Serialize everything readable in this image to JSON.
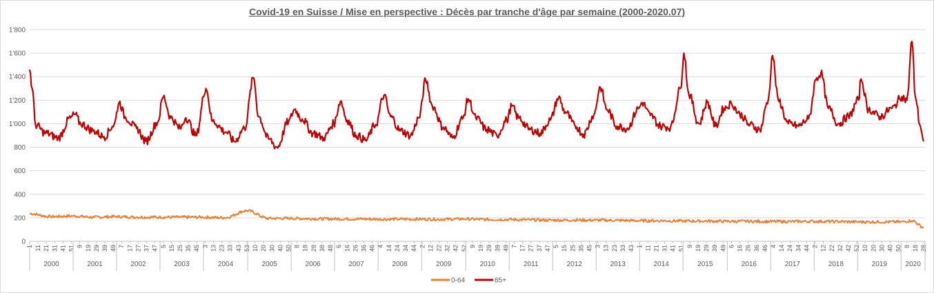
{
  "chart_data": {
    "type": "line",
    "title": "Covid-19 en Suisse / Mise en perspective : Décès par tranche d'âge par semaine (2000-2020.07)",
    "ylim": [
      0,
      1800
    ],
    "yticks": [
      0,
      200,
      400,
      600,
      800,
      "1'000",
      "1'200",
      "1'400",
      "1'600",
      "1'800"
    ],
    "grid": true,
    "legend_position": "bottom",
    "years": [
      {
        "label": "2000",
        "ticks": [
          "1",
          "11",
          "21",
          "31",
          "41",
          "51"
        ]
      },
      {
        "label": "2001",
        "ticks": [
          "9",
          "19",
          "29",
          "39",
          "49"
        ]
      },
      {
        "label": "2002",
        "ticks": [
          "7",
          "17",
          "27",
          "37",
          "47"
        ]
      },
      {
        "label": "2003",
        "ticks": [
          "5",
          "15",
          "25",
          "35",
          "45"
        ]
      },
      {
        "label": "2004",
        "ticks": [
          "3",
          "13",
          "23",
          "33",
          "43",
          "53"
        ]
      },
      {
        "label": "2005",
        "ticks": [
          "10",
          "20",
          "30",
          "40",
          "50"
        ]
      },
      {
        "label": "2006",
        "ticks": [
          "8",
          "18",
          "28",
          "38",
          "48"
        ]
      },
      {
        "label": "2007",
        "ticks": [
          "6",
          "16",
          "26",
          "36",
          "46"
        ]
      },
      {
        "label": "2008",
        "ticks": [
          "4",
          "14",
          "24",
          "34",
          "44"
        ]
      },
      {
        "label": "2009",
        "ticks": [
          "2",
          "12",
          "22",
          "32",
          "42",
          "52"
        ]
      },
      {
        "label": "2010",
        "ticks": [
          "9",
          "19",
          "29",
          "39",
          "49"
        ]
      },
      {
        "label": "2011",
        "ticks": [
          "7",
          "17",
          "27",
          "37",
          "47"
        ]
      },
      {
        "label": "2012",
        "ticks": [
          "5",
          "15",
          "25",
          "35",
          "45"
        ]
      },
      {
        "label": "2013",
        "ticks": [
          "3",
          "13",
          "23",
          "33",
          "43"
        ]
      },
      {
        "label": "2014",
        "ticks": [
          "1",
          "11",
          "21",
          "31",
          "41",
          "51"
        ]
      },
      {
        "label": "2015",
        "ticks": [
          "9",
          "19",
          "29",
          "39",
          "49"
        ]
      },
      {
        "label": "2016",
        "ticks": [
          "6",
          "16",
          "26",
          "36",
          "46"
        ]
      },
      {
        "label": "2017",
        "ticks": [
          "4",
          "14",
          "24",
          "34",
          "44"
        ]
      },
      {
        "label": "2018",
        "ticks": [
          "2",
          "12",
          "22",
          "32",
          "42",
          "52"
        ]
      },
      {
        "label": "2019",
        "ticks": [
          "10",
          "20",
          "30",
          "40",
          "50"
        ]
      },
      {
        "label": "2020",
        "ticks": [
          "8",
          "18",
          "28"
        ]
      }
    ],
    "series": [
      {
        "name": "0-64",
        "color": "#ed7d31",
        "points": [
          [
            "2000-W01",
            235
          ],
          [
            "2000-W26",
            210
          ],
          [
            "2000-W52",
            215
          ],
          [
            "2001-W26",
            205
          ],
          [
            "2001-W52",
            210
          ],
          [
            "2002-W26",
            205
          ],
          [
            "2002-W52",
            205
          ],
          [
            "2003-W26",
            205
          ],
          [
            "2003-W52",
            205
          ],
          [
            "2004-W26",
            200
          ],
          [
            "2004-W53",
            260
          ],
          [
            "2005-W26",
            195
          ],
          [
            "2005-W52",
            195
          ],
          [
            "2006-W26",
            192
          ],
          [
            "2006-W52",
            190
          ],
          [
            "2007-W26",
            190
          ],
          [
            "2007-W52",
            188
          ],
          [
            "2008-W26",
            188
          ],
          [
            "2008-W52",
            188
          ],
          [
            "2009-W26",
            187
          ],
          [
            "2009-W52",
            190
          ],
          [
            "2010-W26",
            185
          ],
          [
            "2010-W52",
            185
          ],
          [
            "2011-W26",
            182
          ],
          [
            "2011-W52",
            180
          ],
          [
            "2012-W26",
            180
          ],
          [
            "2012-W52",
            180
          ],
          [
            "2013-W26",
            178
          ],
          [
            "2013-W52",
            175
          ],
          [
            "2014-W26",
            175
          ],
          [
            "2014-W52",
            172
          ],
          [
            "2015-W26",
            172
          ],
          [
            "2015-W52",
            170
          ],
          [
            "2016-W26",
            170
          ],
          [
            "2016-W52",
            168
          ],
          [
            "2017-W26",
            168
          ],
          [
            "2017-W52",
            170
          ],
          [
            "2018-W26",
            168
          ],
          [
            "2018-W52",
            165
          ],
          [
            "2019-W26",
            165
          ],
          [
            "2019-W52",
            165
          ],
          [
            "2020-W14",
            175
          ],
          [
            "2020-W28",
            120
          ]
        ]
      },
      {
        "name": "65+",
        "color": "#c00000",
        "points": [
          [
            "2000-W01",
            1460
          ],
          [
            "2000-W04",
            1300
          ],
          [
            "2000-W08",
            990
          ],
          [
            "2000-W20",
            920
          ],
          [
            "2000-W35",
            880
          ],
          [
            "2000-W50",
            1050
          ],
          [
            "2001-W03",
            1080
          ],
          [
            "2001-W10",
            1000
          ],
          [
            "2001-W25",
            940
          ],
          [
            "2001-W38",
            890
          ],
          [
            "2001-W50",
            990
          ],
          [
            "2002-W04",
            1180
          ],
          [
            "2002-W12",
            1050
          ],
          [
            "2002-W25",
            960
          ],
          [
            "2002-W36",
            850
          ],
          [
            "2002-W50",
            1010
          ],
          [
            "2003-W05",
            1230
          ],
          [
            "2003-W14",
            1050
          ],
          [
            "2003-W25",
            960
          ],
          [
            "2003-W32",
            1050
          ],
          [
            "2003-W44",
            900
          ],
          [
            "2004-W04",
            1300
          ],
          [
            "2004-W12",
            1020
          ],
          [
            "2004-W28",
            930
          ],
          [
            "2004-W38",
            850
          ],
          [
            "2004-W50",
            960
          ],
          [
            "2005-W08",
            1390
          ],
          [
            "2005-W14",
            1060
          ],
          [
            "2005-W26",
            870
          ],
          [
            "2005-W36",
            800
          ],
          [
            "2005-W50",
            1020
          ],
          [
            "2006-W05",
            1120
          ],
          [
            "2006-W14",
            1040
          ],
          [
            "2006-W27",
            920
          ],
          [
            "2006-W40",
            880
          ],
          [
            "2006-W52",
            1000
          ],
          [
            "2007-W08",
            1190
          ],
          [
            "2007-W16",
            1030
          ],
          [
            "2007-W27",
            900
          ],
          [
            "2007-W38",
            860
          ],
          [
            "2007-W50",
            990
          ],
          [
            "2008-W08",
            1240
          ],
          [
            "2008-W16",
            1060
          ],
          [
            "2008-W28",
            940
          ],
          [
            "2008-W40",
            900
          ],
          [
            "2008-W50",
            1050
          ],
          [
            "2009-W06",
            1370
          ],
          [
            "2009-W14",
            1150
          ],
          [
            "2009-W27",
            970
          ],
          [
            "2009-W38",
            880
          ],
          [
            "2009-W50",
            1040
          ],
          [
            "2010-W04",
            1210
          ],
          [
            "2010-W13",
            1050
          ],
          [
            "2010-W26",
            950
          ],
          [
            "2010-W38",
            900
          ],
          [
            "2010-W50",
            1030
          ],
          [
            "2011-W04",
            1150
          ],
          [
            "2011-W12",
            1050
          ],
          [
            "2011-W26",
            950
          ],
          [
            "2011-W38",
            920
          ],
          [
            "2011-W50",
            1030
          ],
          [
            "2012-W08",
            1220
          ],
          [
            "2012-W16",
            1100
          ],
          [
            "2012-W28",
            980
          ],
          [
            "2012-W38",
            910
          ],
          [
            "2012-W50",
            1070
          ],
          [
            "2013-W06",
            1310
          ],
          [
            "2013-W14",
            1120
          ],
          [
            "2013-W26",
            980
          ],
          [
            "2013-W38",
            960
          ],
          [
            "2013-W52",
            1130
          ],
          [
            "2014-W04",
            1180
          ],
          [
            "2014-W14",
            1070
          ],
          [
            "2014-W26",
            980
          ],
          [
            "2014-W38",
            970
          ],
          [
            "2014-W50",
            1300
          ],
          [
            "2015-W02",
            1600
          ],
          [
            "2015-W08",
            1250
          ],
          [
            "2015-W20",
            1000
          ],
          [
            "2015-W30",
            1180
          ],
          [
            "2015-W40",
            980
          ],
          [
            "2015-W50",
            1130
          ],
          [
            "2016-W06",
            1170
          ],
          [
            "2016-W16",
            1080
          ],
          [
            "2016-W28",
            990
          ],
          [
            "2016-W40",
            950
          ],
          [
            "2016-W50",
            1200
          ],
          [
            "2017-W03",
            1580
          ],
          [
            "2017-W10",
            1200
          ],
          [
            "2017-W22",
            1000
          ],
          [
            "2017-W34",
            980
          ],
          [
            "2017-W46",
            1040
          ],
          [
            "2018-W04",
            1390
          ],
          [
            "2018-W09",
            1430
          ],
          [
            "2018-W18",
            1130
          ],
          [
            "2018-W30",
            1000
          ],
          [
            "2018-W42",
            1060
          ],
          [
            "2019-W02",
            1200
          ],
          [
            "2019-W05",
            1380
          ],
          [
            "2019-W14",
            1120
          ],
          [
            "2019-W28",
            1060
          ],
          [
            "2019-W42",
            1130
          ],
          [
            "2020-W02",
            1230
          ],
          [
            "2020-W08",
            1200
          ],
          [
            "2020-W14",
            1700
          ],
          [
            "2020-W18",
            1230
          ],
          [
            "2020-W24",
            980
          ],
          [
            "2020-W28",
            850
          ]
        ]
      }
    ]
  }
}
